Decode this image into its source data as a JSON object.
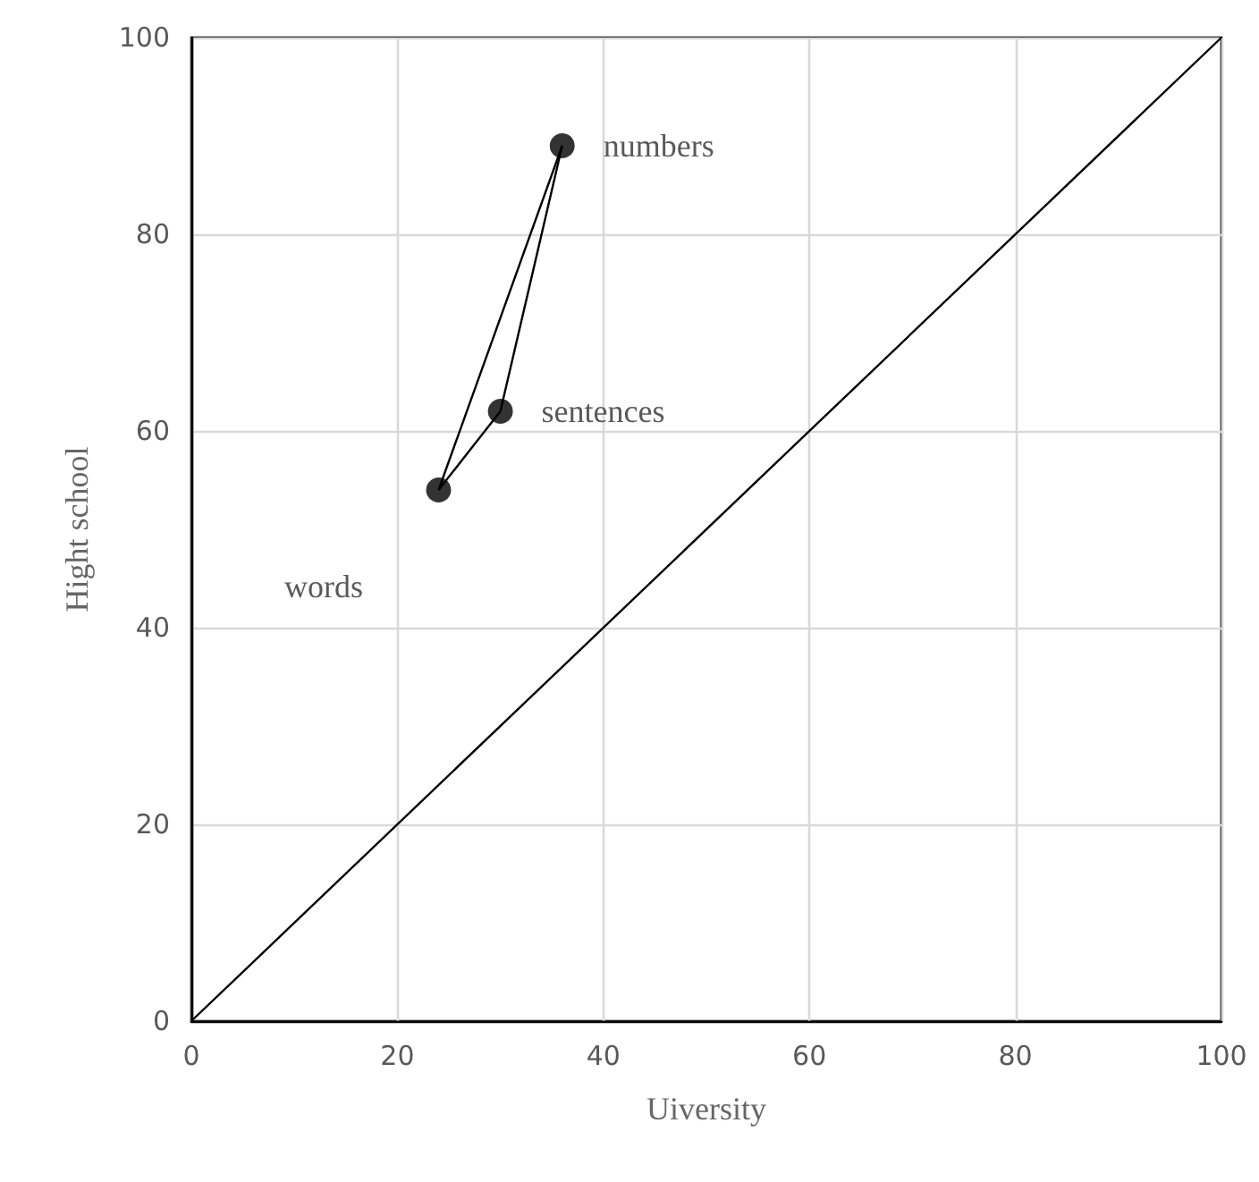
{
  "chart_data": {
    "type": "line",
    "xlabel": "Uiversity",
    "ylabel": "Hight school",
    "xlim": [
      0,
      100
    ],
    "ylim": [
      0,
      100
    ],
    "xticks": [
      0,
      20,
      40,
      60,
      80,
      100
    ],
    "yticks": [
      0,
      20,
      40,
      60,
      80,
      100
    ],
    "grid": true,
    "marker": "none",
    "series": [
      {
        "x": [
          0,
          100
        ],
        "values": [
          0,
          100
        ],
        "color": "#000000"
      },
      {
        "x": [
          24,
          36
        ],
        "values": [
          54,
          89
        ],
        "color": "#000000"
      },
      {
        "x": [
          30,
          36
        ],
        "values": [
          62,
          89
        ],
        "color": "#000000"
      },
      {
        "x": [
          24,
          30
        ],
        "values": [
          54,
          62
        ],
        "color": "#000000"
      },
      {
        "type": "scatter",
        "x": [
          36,
          30,
          24
        ],
        "values": [
          89,
          62,
          54
        ],
        "color": "#000000",
        "marker": "circle"
      }
    ],
    "annotations": [
      {
        "text": "numbers",
        "x": 36,
        "y": 89
      },
      {
        "text": "sentences",
        "x": 30,
        "y": 62
      },
      "words"
    ]
  }
}
